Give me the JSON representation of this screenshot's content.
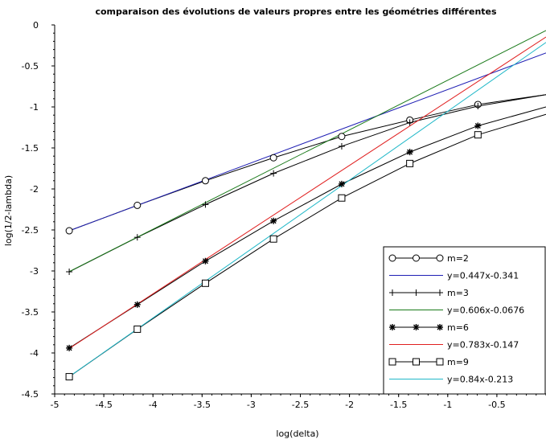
{
  "chart_data": {
    "type": "line",
    "title": "comparaison des évolutions de valeurs propres entre les géométries différentes",
    "xlabel": "log(delta)",
    "ylabel": "log(1/2-lambda)",
    "xlim": [
      -5,
      0
    ],
    "ylim": [
      -4.5,
      0
    ],
    "xticks": [
      "-5",
      "-4.5",
      "-4",
      "-3.5",
      "-3",
      "-2.5",
      "-2",
      "-1.5",
      "-1",
      "-0.5"
    ],
    "yticks": [
      "0",
      "-0.5",
      "-1",
      "-1.5",
      "-2",
      "-2.5",
      "-3",
      "-3.5",
      "-4",
      "-4.5"
    ],
    "legend_position": "bottom-right",
    "series": [
      {
        "name": "m=2",
        "kind": "data",
        "marker": "circle",
        "color": "#000000",
        "x": [
          -4.852,
          -4.159,
          -3.466,
          -2.773,
          -2.079,
          -1.386,
          -0.693,
          0.0
        ],
        "y": [
          -2.51,
          -2.2,
          -1.9,
          -1.62,
          -1.36,
          -1.16,
          -0.97,
          -0.85
        ]
      },
      {
        "name": "y=0.447x-0.341",
        "kind": "fit",
        "color": "#1f1fb4",
        "slope": 0.447,
        "intercept": -0.341,
        "x_range": [
          -4.852,
          0.0
        ]
      },
      {
        "name": "m=3",
        "kind": "data",
        "marker": "plus",
        "color": "#000000",
        "x": [
          -4.852,
          -4.159,
          -3.466,
          -2.773,
          -2.079,
          -1.386,
          -0.693,
          0.0
        ],
        "y": [
          -3.01,
          -2.59,
          -2.19,
          -1.81,
          -1.48,
          -1.19,
          -0.99,
          -0.85
        ]
      },
      {
        "name": "y=0.606x-0.0676",
        "kind": "fit",
        "color": "#1a7a1a",
        "slope": 0.606,
        "intercept": -0.0676,
        "x_range": [
          -4.852,
          0.0
        ]
      },
      {
        "name": "m=6",
        "kind": "data",
        "marker": "star",
        "color": "#000000",
        "x": [
          -4.852,
          -4.159,
          -3.466,
          -2.773,
          -2.079,
          -1.386,
          -0.693,
          0.0
        ],
        "y": [
          -3.94,
          -3.41,
          -2.88,
          -2.39,
          -1.94,
          -1.55,
          -1.23,
          -1.0
        ]
      },
      {
        "name": "y=0.783x-0.147",
        "kind": "fit",
        "color": "#e02020",
        "slope": 0.783,
        "intercept": -0.147,
        "x_range": [
          -4.852,
          0.0
        ]
      },
      {
        "name": "m=9",
        "kind": "data",
        "marker": "square",
        "color": "#000000",
        "x": [
          -4.852,
          -4.159,
          -3.466,
          -2.773,
          -2.079,
          -1.386,
          -0.693,
          0.0
        ],
        "y": [
          -4.29,
          -3.71,
          -3.15,
          -2.61,
          -2.11,
          -1.69,
          -1.34,
          -1.09
        ]
      },
      {
        "name": "y=0.84x-0.213",
        "kind": "fit",
        "color": "#20b8c8",
        "slope": 0.84,
        "intercept": -0.213,
        "x_range": [
          -4.852,
          0.0
        ]
      }
    ]
  }
}
